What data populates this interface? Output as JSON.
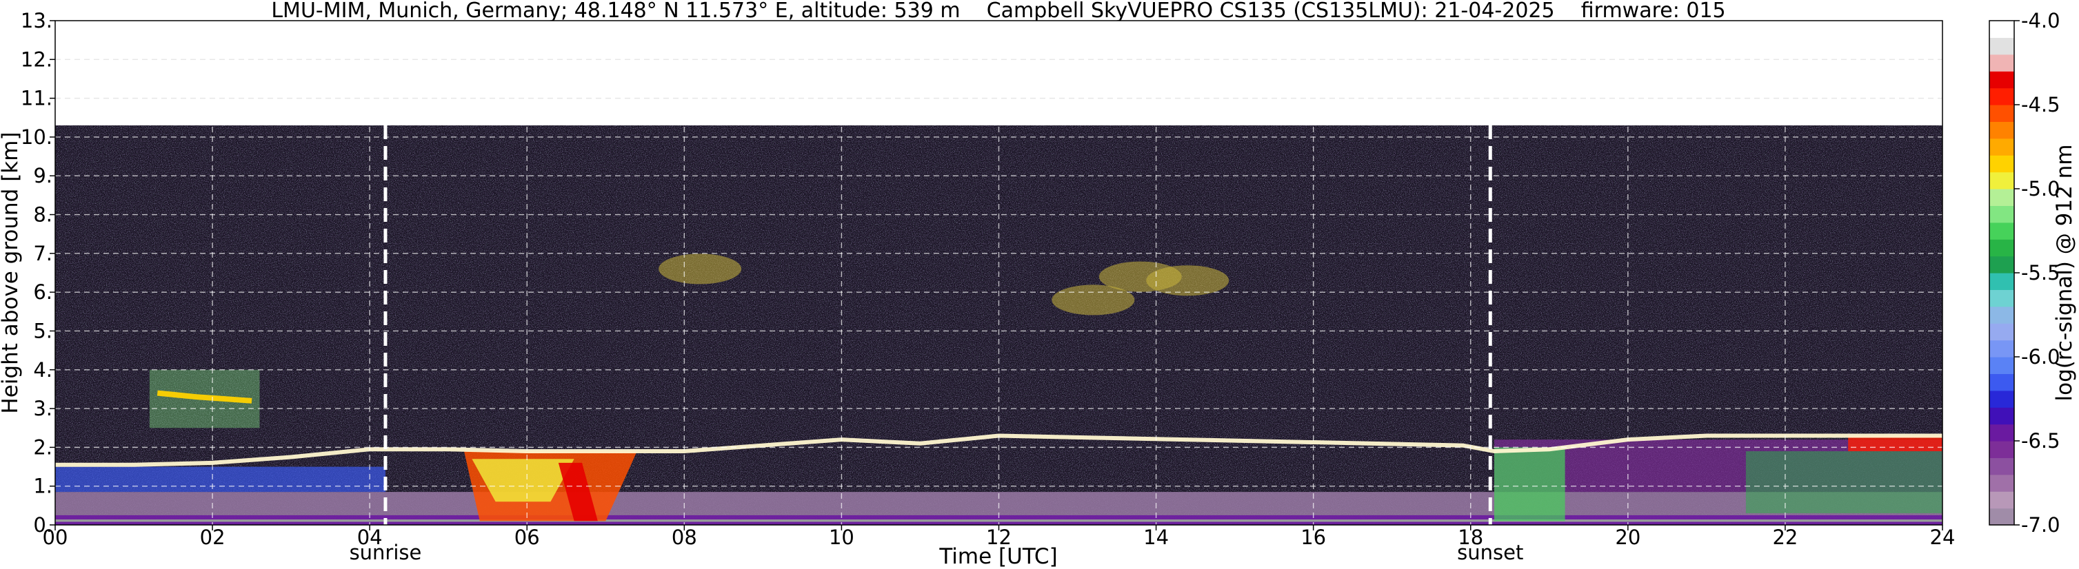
{
  "chart_data": {
    "type": "heatmap",
    "title": "LMU-MIM, Munich, Germany; 48.148° N 11.573° E, altitude: 539 m    Campbell SkyVUEPRO CS135 (CS135LMU): 21-04-2025    firmware: 015",
    "xlabel": "Time [UTC]",
    "ylabel": "Height above ground [km]",
    "colorbar_label": "log(rc-signal) @ 912 nm",
    "xlim": [
      0,
      24
    ],
    "ylim": [
      0,
      13
    ],
    "x_ticks": [
      0,
      2,
      4,
      6,
      8,
      10,
      12,
      14,
      16,
      18,
      20,
      22,
      24
    ],
    "x_tick_labels": [
      "00",
      "02",
      "04",
      "06",
      "08",
      "10",
      "12",
      "14",
      "16",
      "18",
      "20",
      "22",
      "24"
    ],
    "y_ticks": [
      0,
      1,
      2,
      3,
      4,
      5,
      6,
      7,
      8,
      9,
      10,
      11,
      12,
      13
    ],
    "y_tick_labels": [
      "0.",
      "1.",
      "2.",
      "3.",
      "4.",
      "5.",
      "6.",
      "7.",
      "8.",
      "9.",
      "10.",
      "11.",
      "12.",
      "13."
    ],
    "data_top_km": 10.3,
    "grid": true,
    "colorbar": {
      "min": -7.0,
      "max": -4.0,
      "ticks": [
        -4.0,
        -4.5,
        -5.0,
        -5.5,
        -6.0,
        -6.5,
        -7.0
      ],
      "tick_labels": [
        "-4.0",
        "-4.5",
        "-5.0",
        "-5.5",
        "-6.0",
        "-6.5",
        "-7.0"
      ],
      "colors": [
        "#a08ca8",
        "#b898b8",
        "#a070a8",
        "#8c50a0",
        "#7d2e98",
        "#6a1aa0",
        "#4010b8",
        "#2828d8",
        "#3c5af0",
        "#5a82f5",
        "#7896f5",
        "#96aaf0",
        "#8cb8e6",
        "#6ed2d2",
        "#30c0b0",
        "#1ea050",
        "#28b446",
        "#46d25a",
        "#82e682",
        "#b4f096",
        "#f0f03c",
        "#ffd200",
        "#ffaa00",
        "#ff8200",
        "#ff5000",
        "#ff1e00",
        "#e60000",
        "#f0b4b4",
        "#e1e1e1",
        "#ffffff"
      ]
    },
    "markers": [
      {
        "label": "sunrise",
        "x": 4.2
      },
      {
        "label": "sunset",
        "x": 18.25
      }
    ],
    "layers": [
      {
        "name": "boundary layer top",
        "points": [
          [
            0,
            1.55
          ],
          [
            1,
            1.55
          ],
          [
            2,
            1.6
          ],
          [
            3,
            1.75
          ],
          [
            3.5,
            1.85
          ],
          [
            4,
            1.95
          ],
          [
            5,
            1.95
          ],
          [
            6,
            1.9
          ],
          [
            7,
            1.9
          ],
          [
            8,
            1.9
          ],
          [
            9,
            2.05
          ],
          [
            10,
            2.2
          ],
          [
            11,
            2.1
          ],
          [
            12,
            2.3
          ],
          [
            17.9,
            2.05
          ],
          [
            18.3,
            1.9
          ],
          [
            19,
            1.95
          ],
          [
            20,
            2.2
          ],
          [
            21,
            2.3
          ],
          [
            22,
            2.3
          ],
          [
            23,
            2.3
          ],
          [
            24,
            2.3
          ]
        ]
      },
      {
        "name": "elevated aerosol layer",
        "points": [
          [
            1.3,
            3.4
          ],
          [
            1.8,
            3.3
          ],
          [
            2.5,
            3.2
          ]
        ]
      },
      {
        "name": "upper cloud features",
        "points": [
          [
            8.2,
            6.6
          ],
          [
            13.2,
            5.8
          ],
          [
            13.8,
            6.4
          ],
          [
            14.4,
            6.3
          ]
        ]
      }
    ]
  }
}
